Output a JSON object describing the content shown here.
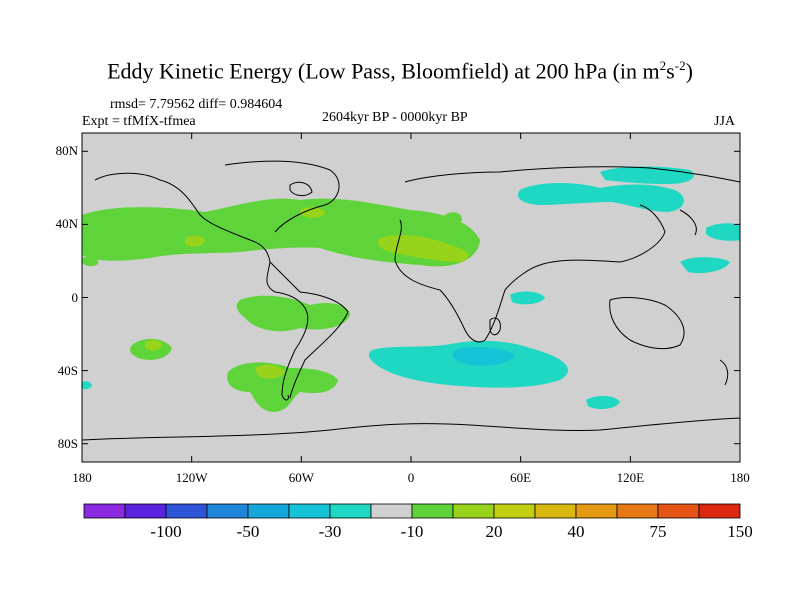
{
  "title": {
    "main": "Eddy Kinetic Energy (Low Pass, Bloomfield) at 200 hPa (in m",
    "sup1": "2",
    "mid": "s",
    "sup2": "-2",
    "end": ")"
  },
  "header": {
    "stats": "rmsd= 7.79562  diff= 0.984604",
    "experiment": "Expt = tfMfX-tfmea",
    "period": "2604kyr BP - 0000kyr BP",
    "season": "JJA"
  },
  "axes": {
    "y_ticks": [
      "80N",
      "40N",
      "0",
      "40S",
      "80S"
    ],
    "y_values": [
      80,
      40,
      0,
      -40,
      -80
    ],
    "x_ticks": [
      "180",
      "120W",
      "60W",
      "0",
      "60E",
      "120E",
      "180"
    ],
    "x_values": [
      -180,
      -120,
      -60,
      0,
      60,
      120,
      180
    ]
  },
  "colorbar": {
    "colors": [
      "#8a2be2",
      "#5b22e0",
      "#2e55d8",
      "#1f86d9",
      "#15a7d9",
      "#14c4d6",
      "#1ed8c4",
      "#d0d0d0",
      "#5fd43a",
      "#96d31a",
      "#c2cf10",
      "#d9b810",
      "#e39a12",
      "#e67816",
      "#e55414",
      "#dc2810"
    ],
    "labels": [
      "-100",
      "-50",
      "-30",
      "-10",
      "20",
      "40",
      "75",
      "150"
    ]
  },
  "map": {
    "land_color": "#d0d0d0",
    "positive_color": "#5fd43a",
    "positive_strong_color": "#96d31a",
    "negative_color": "#1ed8c4",
    "negative_strong_color": "#14c4d6"
  }
}
